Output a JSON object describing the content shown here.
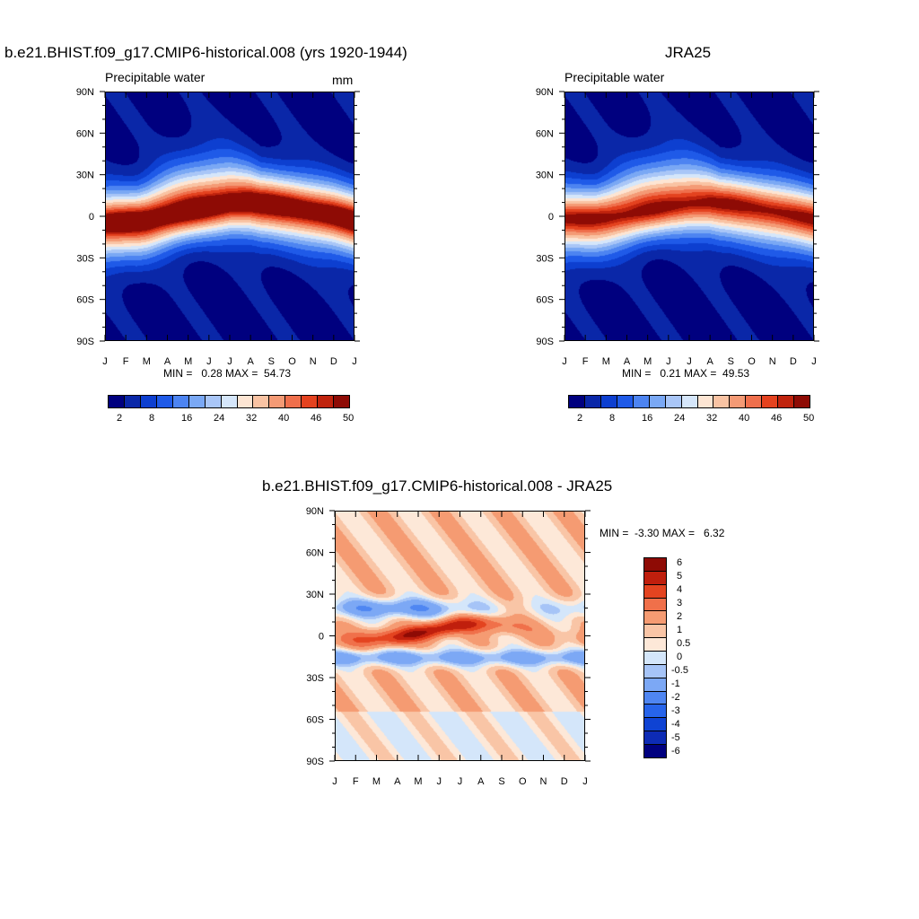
{
  "palette": [
    "#00007f",
    "#0a27a8",
    "#0d3fd0",
    "#1f5ae8",
    "#4d84f1",
    "#7aa8f4",
    "#a9c6f7",
    "#d5e6fa",
    "#fde5d3",
    "#f9c3a3",
    "#f49a75",
    "#ef6f4c",
    "#e4421f",
    "#c0230d",
    "#8e0b05"
  ],
  "diff_palette": [
    "#00007f",
    "#0d2bb5",
    "#0f43d3",
    "#2764ea",
    "#4f86f2",
    "#7ca8f5",
    "#a6c4f7",
    "#d4e6fa",
    "#fde8d8",
    "#f9c5a6",
    "#f59b72",
    "#f0704a",
    "#e44420",
    "#c01f0d",
    "#8e0b05"
  ],
  "panels": {
    "model": {
      "title": "b.e21.BHIST.f09_g17.CMIP6-historical.008 (yrs 1920-1944)",
      "subtitle": "Precipitable water",
      "units": "mm",
      "stats": "MIN =   0.28 MAX =  54.73",
      "colorbar_labels": [
        "2",
        "8",
        "16",
        "24",
        "32",
        "40",
        "46",
        "50"
      ]
    },
    "obs": {
      "title": "JRA25",
      "subtitle": "Precipitable water",
      "stats": "MIN =   0.21 MAX =  49.53",
      "colorbar_labels": [
        "2",
        "8",
        "16",
        "24",
        "32",
        "40",
        "46",
        "50"
      ]
    },
    "diff": {
      "title": "b.e21.BHIST.f09_g17.CMIP6-historical.008 - JRA25",
      "stats": "MIN =  -3.30 MAX =   6.32",
      "colorbar_labels": [
        "6",
        "5",
        "4",
        "3",
        "2",
        "1",
        "0.5",
        "0",
        "-0.5",
        "-1",
        "-2",
        "-3",
        "-4",
        "-5",
        "-6"
      ]
    }
  },
  "chart_data": [
    {
      "type": "heatmap",
      "title": "b.e21.BHIST.f09_g17.CMIP6-historical.008 (yrs 1920-1944)",
      "subtitle": "Precipitable water",
      "units": "mm",
      "x_ticks": [
        "J",
        "F",
        "M",
        "A",
        "M",
        "J",
        "J",
        "A",
        "S",
        "O",
        "N",
        "D",
        "J"
      ],
      "y_ticks": [
        "90N",
        "60N",
        "30N",
        "0",
        "30S",
        "60S",
        "90S"
      ],
      "ylim": [
        -90,
        90
      ],
      "levels": [
        2,
        5,
        8,
        12,
        16,
        20,
        24,
        28,
        32,
        36,
        40,
        43,
        46,
        48,
        50
      ],
      "min": 0.28,
      "max": 54.73,
      "approx_field": {
        "peak_lat_by_month": [
          -5,
          -4,
          -3,
          0,
          3,
          6,
          9,
          10,
          9,
          7,
          4,
          1,
          -3
        ],
        "peak_value": 54.7
      }
    },
    {
      "type": "heatmap",
      "title": "JRA25",
      "subtitle": "Precipitable water",
      "x_ticks": [
        "J",
        "F",
        "M",
        "A",
        "M",
        "J",
        "J",
        "A",
        "S",
        "O",
        "N",
        "D",
        "J"
      ],
      "y_ticks": [
        "90N",
        "60N",
        "30N",
        "0",
        "30S",
        "60S",
        "90S"
      ],
      "ylim": [
        -90,
        90
      ],
      "levels": [
        2,
        5,
        8,
        12,
        16,
        20,
        24,
        28,
        32,
        36,
        40,
        43,
        46,
        48,
        50
      ],
      "min": 0.21,
      "max": 49.53,
      "approx_field": {
        "peak_lat_by_month": [
          -2,
          -2,
          -1,
          1,
          4,
          7,
          9,
          10,
          9,
          7,
          4,
          1,
          -2
        ],
        "peak_value": 49.5
      }
    },
    {
      "type": "heatmap",
      "title": "b.e21.BHIST.f09_g17.CMIP6-historical.008 - JRA25",
      "x_ticks": [
        "J",
        "F",
        "M",
        "A",
        "M",
        "J",
        "J",
        "A",
        "S",
        "O",
        "N",
        "D",
        "J"
      ],
      "y_ticks": [
        "90N",
        "60N",
        "30N",
        "0",
        "30S",
        "60S",
        "90S"
      ],
      "ylim": [
        -90,
        90
      ],
      "levels": [
        -6,
        -5,
        -4,
        -3,
        -2,
        -1,
        -0.5,
        0,
        0.5,
        1,
        2,
        3,
        4,
        5,
        6
      ],
      "min": -3.3,
      "max": 6.32
    }
  ]
}
